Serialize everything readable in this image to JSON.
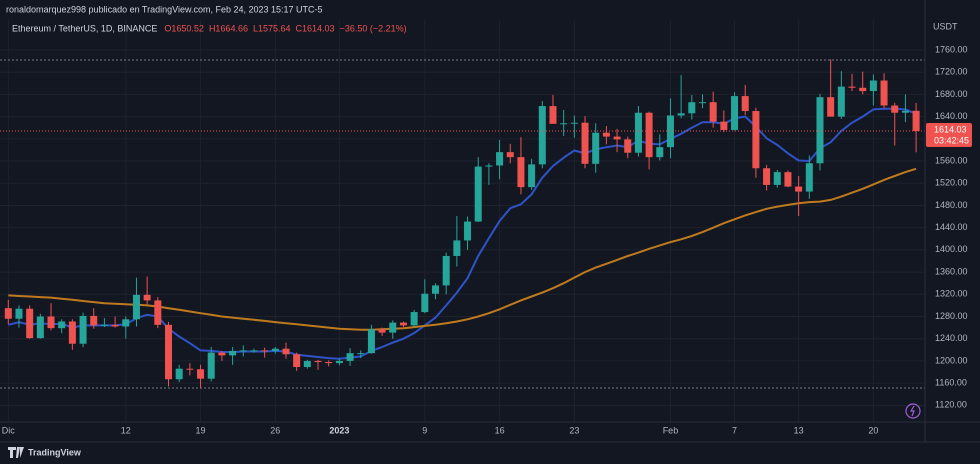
{
  "header": {
    "publisher": "ronaldomarquez998 publicado en TradingView.com, Feb 24, 2023 15:17 UTC-5",
    "brand": "TradingView"
  },
  "chart_data": {
    "type": "candlestick",
    "legend": {
      "symbol": "Ethereum / TetherUS, 1D, BINANCE",
      "ohlc": [
        "O1650.52",
        "H1664.66",
        "L1575.64",
        "C1614.03"
      ],
      "change": "−36.50 (−2.21%)"
    },
    "currency": "USDT",
    "price_label": "1614.03",
    "countdown": "03:42:45",
    "up_color": "#26a69a",
    "down_color": "#ef5350",
    "open": [
      1295,
      1276,
      1294,
      1241,
      1280,
      1259,
      1271,
      1231,
      1281,
      1264,
      1265,
      1262,
      1275,
      1319,
      1309,
      1265,
      1167,
      1186,
      1185,
      1168,
      1215,
      1210,
      1218,
      1219,
      1219,
      1218,
      1222,
      1212,
      1189,
      1200,
      1198,
      1196,
      1200,
      1214,
      1214,
      1257,
      1251,
      1269,
      1264,
      1288,
      1321,
      1336,
      1389,
      1417,
      1451,
      1550,
      1552,
      1576,
      1567,
      1513,
      1554,
      1659,
      1627,
      1628,
      1629,
      1555,
      1611,
      1604,
      1599,
      1575,
      1647,
      1567,
      1585,
      1642,
      1646,
      1666,
      1666,
      1631,
      1616,
      1677,
      1650,
      1547,
      1517,
      1540,
      1514,
      1505,
      1556,
      1675,
      1640,
      1694,
      1692,
      1686,
      1705,
      1660,
      1647,
      1650.52
    ],
    "high": [
      1310,
      1300,
      1300,
      1285,
      1304,
      1275,
      1275,
      1287,
      1295,
      1277,
      1280,
      1280,
      1350,
      1352,
      1315,
      1270,
      1193,
      1196,
      1193,
      1225,
      1218,
      1225,
      1228,
      1222,
      1224,
      1225,
      1233,
      1215,
      1202,
      1202,
      1201,
      1204,
      1223,
      1219,
      1265,
      1260,
      1273,
      1271,
      1292,
      1347,
      1340,
      1395,
      1461,
      1460,
      1567,
      1556,
      1598,
      1591,
      1603,
      1564,
      1668,
      1679,
      1652,
      1642,
      1641,
      1628,
      1623,
      1618,
      1604,
      1659,
      1649,
      1608,
      1673,
      1715,
      1679,
      1680,
      1685,
      1651,
      1684,
      1697,
      1656,
      1553,
      1544,
      1543,
      1533,
      1570,
      1681,
      1743,
      1722,
      1717,
      1721,
      1716,
      1718,
      1665,
      1680,
      1664.66
    ],
    "low": [
      1266,
      1260,
      1240,
      1240,
      1255,
      1250,
      1220,
      1225,
      1258,
      1261,
      1260,
      1240,
      1262,
      1300,
      1259,
      1154,
      1162,
      1174,
      1151,
      1163,
      1200,
      1193,
      1208,
      1215,
      1206,
      1213,
      1204,
      1182,
      1186,
      1184,
      1190,
      1192,
      1191,
      1205,
      1213,
      1245,
      1240,
      1261,
      1261,
      1286,
      1311,
      1320,
      1370,
      1400,
      1450,
      1517,
      1527,
      1556,
      1500,
      1508,
      1547,
      1630,
      1605,
      1602,
      1547,
      1539,
      1590,
      1576,
      1565,
      1568,
      1545,
      1561,
      1565,
      1637,
      1635,
      1655,
      1620,
      1612,
      1615,
      1643,
      1530,
      1507,
      1512,
      1513,
      1461,
      1492,
      1543,
      1640,
      1636,
      1686,
      1680,
      1660,
      1655,
      1588,
      1630,
      1575.64
    ],
    "close": [
      1276,
      1294,
      1241,
      1280,
      1259,
      1271,
      1231,
      1281,
      1264,
      1265,
      1262,
      1275,
      1319,
      1309,
      1265,
      1167,
      1186,
      1185,
      1168,
      1215,
      1210,
      1218,
      1219,
      1219,
      1218,
      1222,
      1212,
      1189,
      1200,
      1198,
      1196,
      1200,
      1214,
      1214,
      1257,
      1251,
      1269,
      1264,
      1288,
      1321,
      1336,
      1389,
      1417,
      1451,
      1550,
      1552,
      1576,
      1567,
      1513,
      1554,
      1659,
      1627,
      1628,
      1629,
      1555,
      1611,
      1604,
      1599,
      1575,
      1647,
      1567,
      1585,
      1642,
      1646,
      1666,
      1666,
      1631,
      1616,
      1677,
      1650,
      1547,
      1517,
      1540,
      1514,
      1505,
      1556,
      1675,
      1640,
      1694,
      1692,
      1686,
      1705,
      1660,
      1647,
      1650.52,
      1614.03
    ],
    "series": [
      {
        "color": "#2f53c8",
        "values": [
          1265,
          1270,
          1265,
          1268,
          1266,
          1267,
          1260,
          1264,
          1264,
          1264,
          1264,
          1266,
          1277,
          1283,
          1280,
          1258,
          1244,
          1232,
          1219,
          1218,
          1216,
          1216,
          1217,
          1217,
          1217,
          1218,
          1217,
          1211,
          1209,
          1207,
          1205,
          1204,
          1206,
          1208,
          1218,
          1225,
          1233,
          1240,
          1250,
          1264,
          1278,
          1300,
          1323,
          1349,
          1389,
          1421,
          1452,
          1475,
          1482,
          1500,
          1530,
          1551,
          1566,
          1579,
          1574,
          1581,
          1585,
          1588,
          1585,
          1597,
          1591,
          1590,
          1600,
          1609,
          1620,
          1630,
          1630,
          1627,
          1637,
          1640,
          1622,
          1601,
          1589,
          1574,
          1561,
          1560,
          1583,
          1594,
          1614,
          1629,
          1640,
          1653,
          1654,
          1654,
          1653,
          1645
        ]
      },
      {
        "color": "#c07a1e",
        "values": [
          1318,
          1317,
          1316,
          1315,
          1314,
          1312,
          1310,
          1308,
          1306,
          1304,
          1303,
          1302,
          1301,
          1300,
          1298,
          1295,
          1292,
          1289,
          1286,
          1283,
          1280,
          1278,
          1276,
          1274,
          1272,
          1270,
          1268,
          1266,
          1264,
          1262,
          1260,
          1258,
          1257,
          1256,
          1256,
          1257,
          1258,
          1259,
          1261,
          1263,
          1265,
          1268,
          1271,
          1275,
          1280,
          1286,
          1293,
          1301,
          1309,
          1316,
          1323,
          1331,
          1340,
          1350,
          1360,
          1368,
          1375,
          1382,
          1389,
          1395,
          1402,
          1408,
          1414,
          1419,
          1425,
          1432,
          1440,
          1448,
          1455,
          1462,
          1468,
          1474,
          1478,
          1481,
          1484,
          1486,
          1487,
          1490,
          1496,
          1503,
          1510,
          1518,
          1526,
          1533,
          1540,
          1546
        ]
      }
    ],
    "xticks": [
      {
        "value": 0,
        "label": "Dic"
      },
      {
        "value": 11,
        "label": "12"
      },
      {
        "value": 18,
        "label": "19"
      },
      {
        "value": 25,
        "label": "26"
      },
      {
        "value": 31,
        "label": "2023"
      },
      {
        "value": 39,
        "label": "9"
      },
      {
        "value": 46,
        "label": "16"
      },
      {
        "value": 53,
        "label": "23"
      },
      {
        "value": 62,
        "label": "Feb"
      },
      {
        "value": 68,
        "label": "7"
      },
      {
        "value": 74,
        "label": "13"
      },
      {
        "value": 81,
        "label": "20"
      }
    ],
    "ylim": [
      1090,
      1814
    ],
    "yticks": [
      {
        "value": 1120,
        "label": "1120.00"
      },
      {
        "value": 1160,
        "label": "1160.00"
      },
      {
        "value": 1200,
        "label": "1200.00"
      },
      {
        "value": 1240,
        "label": "1240.00"
      },
      {
        "value": 1280,
        "label": "1280.00"
      },
      {
        "value": 1320,
        "label": "1320.00"
      },
      {
        "value": 1360,
        "label": "1360.00"
      },
      {
        "value": 1400,
        "label": "1400.00"
      },
      {
        "value": 1440,
        "label": "1440.00"
      },
      {
        "value": 1480,
        "label": "1480.00"
      },
      {
        "value": 1520,
        "label": "1520.00"
      },
      {
        "value": 1560,
        "label": "1560.00"
      },
      {
        "value": 1600,
        "label": "1600.00"
      },
      {
        "value": 1640,
        "label": "1640.00"
      },
      {
        "value": 1680,
        "label": "1680.00"
      },
      {
        "value": 1720,
        "label": "1720.00"
      },
      {
        "value": 1760,
        "label": "1760.00"
      }
    ],
    "grid": true
  }
}
